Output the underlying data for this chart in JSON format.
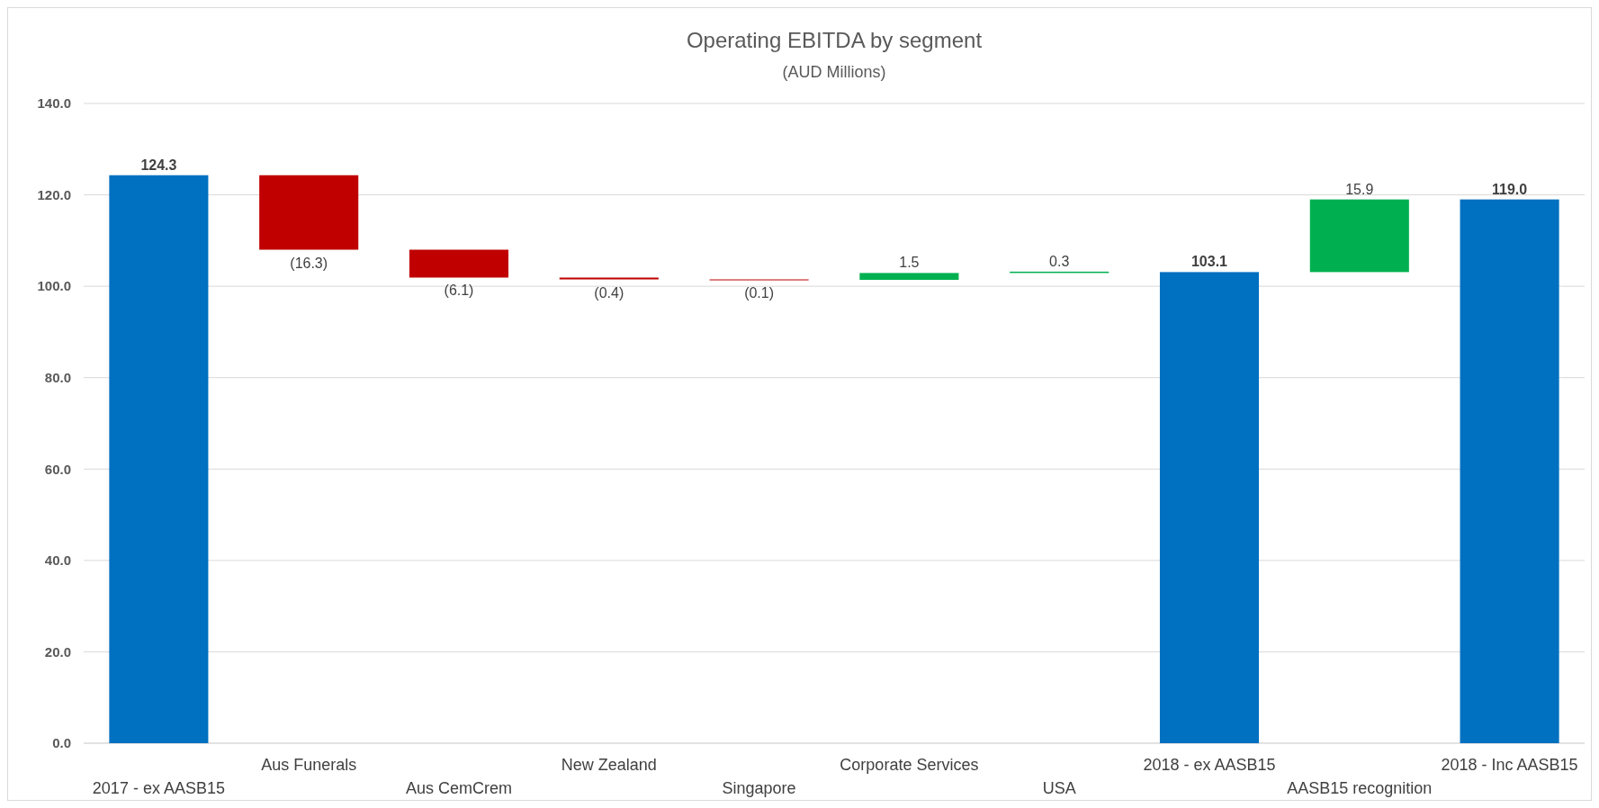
{
  "chart_data": {
    "type": "bar",
    "title": "Operating EBITDA by segment",
    "subtitle": "(AUD Millions)",
    "categories": [
      "2017 - ex AASB15",
      "Aus Funerals",
      "Aus CemCrem",
      "New Zealand",
      "Singapore",
      "Corporate Services",
      "USA",
      "2018 - ex AASB15",
      "AASB15 recognition",
      "2018 - Inc AASB15"
    ],
    "values": [
      124.3,
      -16.3,
      -6.1,
      -0.4,
      -0.1,
      1.5,
      0.3,
      103.1,
      15.9,
      119.0
    ],
    "base": [
      0,
      124.3,
      108.0,
      101.9,
      101.5,
      101.4,
      102.9,
      0,
      103.1,
      0
    ],
    "colors": [
      "#0070c0",
      "#c00000",
      "#c00000",
      "#c00000",
      "#c00000",
      "#00b050",
      "#00b050",
      "#0070c0",
      "#00b050",
      "#0070c0"
    ],
    "value_labels": [
      "124.3",
      "(16.3)",
      "(6.1)",
      "(0.4)",
      "(0.1)",
      "1.5",
      "0.3",
      "103.1",
      "15.9",
      "119.0"
    ],
    "ylim": [
      0,
      140
    ],
    "yticks": [
      {
        "value": 0,
        "label": "0.0"
      },
      {
        "value": 20,
        "label": "20.0"
      },
      {
        "value": 40,
        "label": "40.0"
      },
      {
        "value": 60,
        "label": "60.0"
      },
      {
        "value": 80,
        "label": "80.0"
      },
      {
        "value": 100,
        "label": "100.0"
      },
      {
        "value": 120,
        "label": "120.0"
      },
      {
        "value": 140,
        "label": "140.0"
      }
    ],
    "grid": "y"
  }
}
